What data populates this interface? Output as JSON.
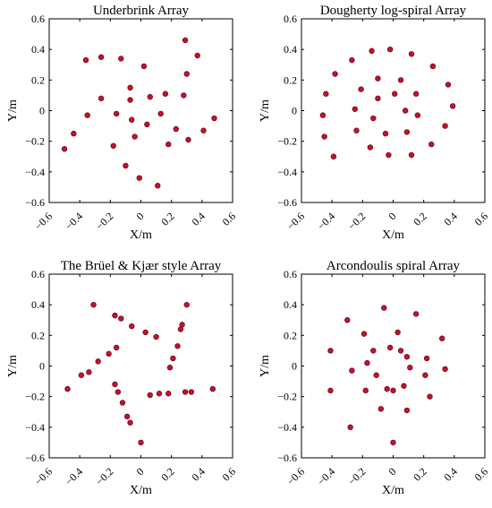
{
  "chart_data": [
    {
      "type": "scatter",
      "title": "Underbrink Array",
      "xlabel": "X/m",
      "ylabel": "Y/m",
      "xlim": [
        -0.6,
        0.6
      ],
      "ylim": [
        -0.6,
        0.6
      ],
      "xticks": [
        "−0.6",
        "−0.4",
        "−0.2",
        "0",
        "0.2",
        "0.4",
        "0.6"
      ],
      "yticks": [
        "0.6",
        "0.4",
        "0.2",
        "0",
        "−0.2",
        "−0.4",
        "−0.6"
      ],
      "grid": false,
      "color": "#c8102e",
      "points": [
        [
          0.29,
          0.46
        ],
        [
          0.37,
          0.36
        ],
        [
          0.3,
          0.24
        ],
        [
          0.28,
          0.1
        ],
        [
          0.06,
          0.09
        ],
        [
          0.02,
          0.29
        ],
        [
          -0.13,
          0.34
        ],
        [
          -0.26,
          0.35
        ],
        [
          -0.36,
          0.33
        ],
        [
          -0.26,
          0.08
        ],
        [
          -0.35,
          -0.03
        ],
        [
          -0.44,
          -0.15
        ],
        [
          -0.5,
          -0.25
        ],
        [
          -0.16,
          -0.02
        ],
        [
          -0.07,
          0.15
        ],
        [
          -0.07,
          0.07
        ],
        [
          -0.06,
          -0.06
        ],
        [
          -0.04,
          -0.17
        ],
        [
          -0.18,
          -0.23
        ],
        [
          -0.1,
          -0.36
        ],
        [
          -0.01,
          -0.44
        ],
        [
          0.11,
          -0.49
        ],
        [
          0.23,
          -0.12
        ],
        [
          0.31,
          -0.19
        ],
        [
          0.41,
          -0.13
        ],
        [
          0.48,
          -0.05
        ],
        [
          0.16,
          0.11
        ],
        [
          0.13,
          -0.02
        ],
        [
          0.18,
          -0.22
        ],
        [
          0.04,
          -0.09
        ]
      ]
    },
    {
      "type": "scatter",
      "title": "Dougherty log-spiral Array",
      "xlabel": "X/m",
      "ylabel": "Y/m",
      "xlim": [
        -0.6,
        0.6
      ],
      "ylim": [
        -0.6,
        0.6
      ],
      "xticks": [
        "−0.6",
        "−0.4",
        "−0.2",
        "0",
        "0.2",
        "0.4",
        "0.6"
      ],
      "yticks": [
        "0.6",
        "0.4",
        "0.2",
        "0",
        "−0.2",
        "−0.4",
        "−0.6"
      ],
      "grid": false,
      "color": "#c8102e",
      "points": [
        [
          -0.02,
          0.4
        ],
        [
          0.12,
          0.37
        ],
        [
          -0.14,
          0.39
        ],
        [
          0.26,
          0.29
        ],
        [
          -0.27,
          0.33
        ],
        [
          -0.38,
          0.24
        ],
        [
          -0.44,
          0.11
        ],
        [
          -0.46,
          -0.03
        ],
        [
          -0.45,
          -0.17
        ],
        [
          -0.39,
          -0.3
        ],
        [
          0.36,
          0.17
        ],
        [
          0.39,
          0.03
        ],
        [
          0.34,
          -0.1
        ],
        [
          0.25,
          -0.22
        ],
        [
          0.12,
          -0.29
        ],
        [
          -0.03,
          -0.29
        ],
        [
          -0.15,
          -0.24
        ],
        [
          -0.24,
          -0.13
        ],
        [
          -0.25,
          0.01
        ],
        [
          -0.21,
          0.14
        ],
        [
          -0.1,
          0.21
        ],
        [
          0.05,
          0.2
        ],
        [
          0.15,
          0.11
        ],
        [
          0.16,
          -0.03
        ],
        [
          0.09,
          -0.14
        ],
        [
          -0.05,
          -0.15
        ],
        [
          -0.13,
          -0.05
        ],
        [
          -0.1,
          0.08
        ],
        [
          0.01,
          0.11
        ],
        [
          0.08,
          0.0
        ]
      ]
    },
    {
      "type": "scatter",
      "title": "The Brüel & Kjær style Array",
      "xlabel": "X/m",
      "ylabel": "Y/m",
      "xlim": [
        -0.6,
        0.6
      ],
      "ylim": [
        -0.6,
        0.6
      ],
      "xticks": [
        "−0.6",
        "−0.4",
        "−0.2",
        "0",
        "0.2",
        "0.4",
        "0.6"
      ],
      "yticks": [
        "0.6",
        "0.4",
        "0.2",
        "0",
        "−0.2",
        "−0.4",
        "−0.6"
      ],
      "grid": false,
      "color": "#c8102e",
      "points": [
        [
          -0.48,
          -0.15
        ],
        [
          -0.39,
          -0.06
        ],
        [
          -0.34,
          -0.04
        ],
        [
          -0.28,
          0.03
        ],
        [
          -0.21,
          0.08
        ],
        [
          -0.16,
          0.12
        ],
        [
          -0.31,
          0.4
        ],
        [
          -0.17,
          0.33
        ],
        [
          -0.13,
          0.31
        ],
        [
          -0.06,
          0.26
        ],
        [
          0.03,
          0.22
        ],
        [
          0.1,
          0.19
        ],
        [
          0.3,
          0.4
        ],
        [
          0.27,
          0.27
        ],
        [
          0.26,
          0.24
        ],
        [
          0.24,
          0.13
        ],
        [
          0.21,
          0.05
        ],
        [
          0.19,
          -0.01
        ],
        [
          0.47,
          -0.15
        ],
        [
          0.33,
          -0.17
        ],
        [
          0.29,
          -0.17
        ],
        [
          0.18,
          -0.18
        ],
        [
          0.12,
          -0.18
        ],
        [
          0.06,
          -0.19
        ],
        [
          0.0,
          -0.5
        ],
        [
          -0.07,
          -0.37
        ],
        [
          -0.09,
          -0.33
        ],
        [
          -0.12,
          -0.24
        ],
        [
          -0.15,
          -0.17
        ],
        [
          -0.17,
          -0.12
        ]
      ]
    },
    {
      "type": "scatter",
      "title": "Arcondoulis spiral Array",
      "xlabel": "X/m",
      "ylabel": "Y/m",
      "xlim": [
        -0.6,
        0.6
      ],
      "ylim": [
        -0.6,
        0.6
      ],
      "xticks": [
        "−0.6",
        "−0.4",
        "−0.2",
        "0",
        "0.2",
        "0.4",
        "0.6"
      ],
      "yticks": [
        "0.6",
        "0.4",
        "0.2",
        "0",
        "−0.2",
        "−0.4",
        "−0.6"
      ],
      "grid": false,
      "color": "#c8102e",
      "points": [
        [
          -0.06,
          0.38
        ],
        [
          0.15,
          0.34
        ],
        [
          -0.3,
          0.3
        ],
        [
          0.32,
          0.18
        ],
        [
          0.03,
          0.22
        ],
        [
          -0.19,
          0.21
        ],
        [
          -0.41,
          0.1
        ],
        [
          0.22,
          0.05
        ],
        [
          -0.02,
          0.12
        ],
        [
          -0.13,
          0.1
        ],
        [
          0.05,
          0.1
        ],
        [
          0.09,
          0.06
        ],
        [
          -0.17,
          0.02
        ],
        [
          0.34,
          -0.02
        ],
        [
          -0.27,
          -0.03
        ],
        [
          0.11,
          -0.01
        ],
        [
          -0.11,
          -0.06
        ],
        [
          0.21,
          -0.06
        ],
        [
          0.07,
          -0.13
        ],
        [
          -0.04,
          -0.15
        ],
        [
          -0.18,
          -0.16
        ],
        [
          0.0,
          -0.16
        ],
        [
          -0.41,
          -0.16
        ],
        [
          0.24,
          -0.2
        ],
        [
          -0.08,
          -0.28
        ],
        [
          0.09,
          -0.29
        ],
        [
          -0.28,
          -0.4
        ],
        [
          0.0,
          -0.5
        ]
      ]
    }
  ]
}
